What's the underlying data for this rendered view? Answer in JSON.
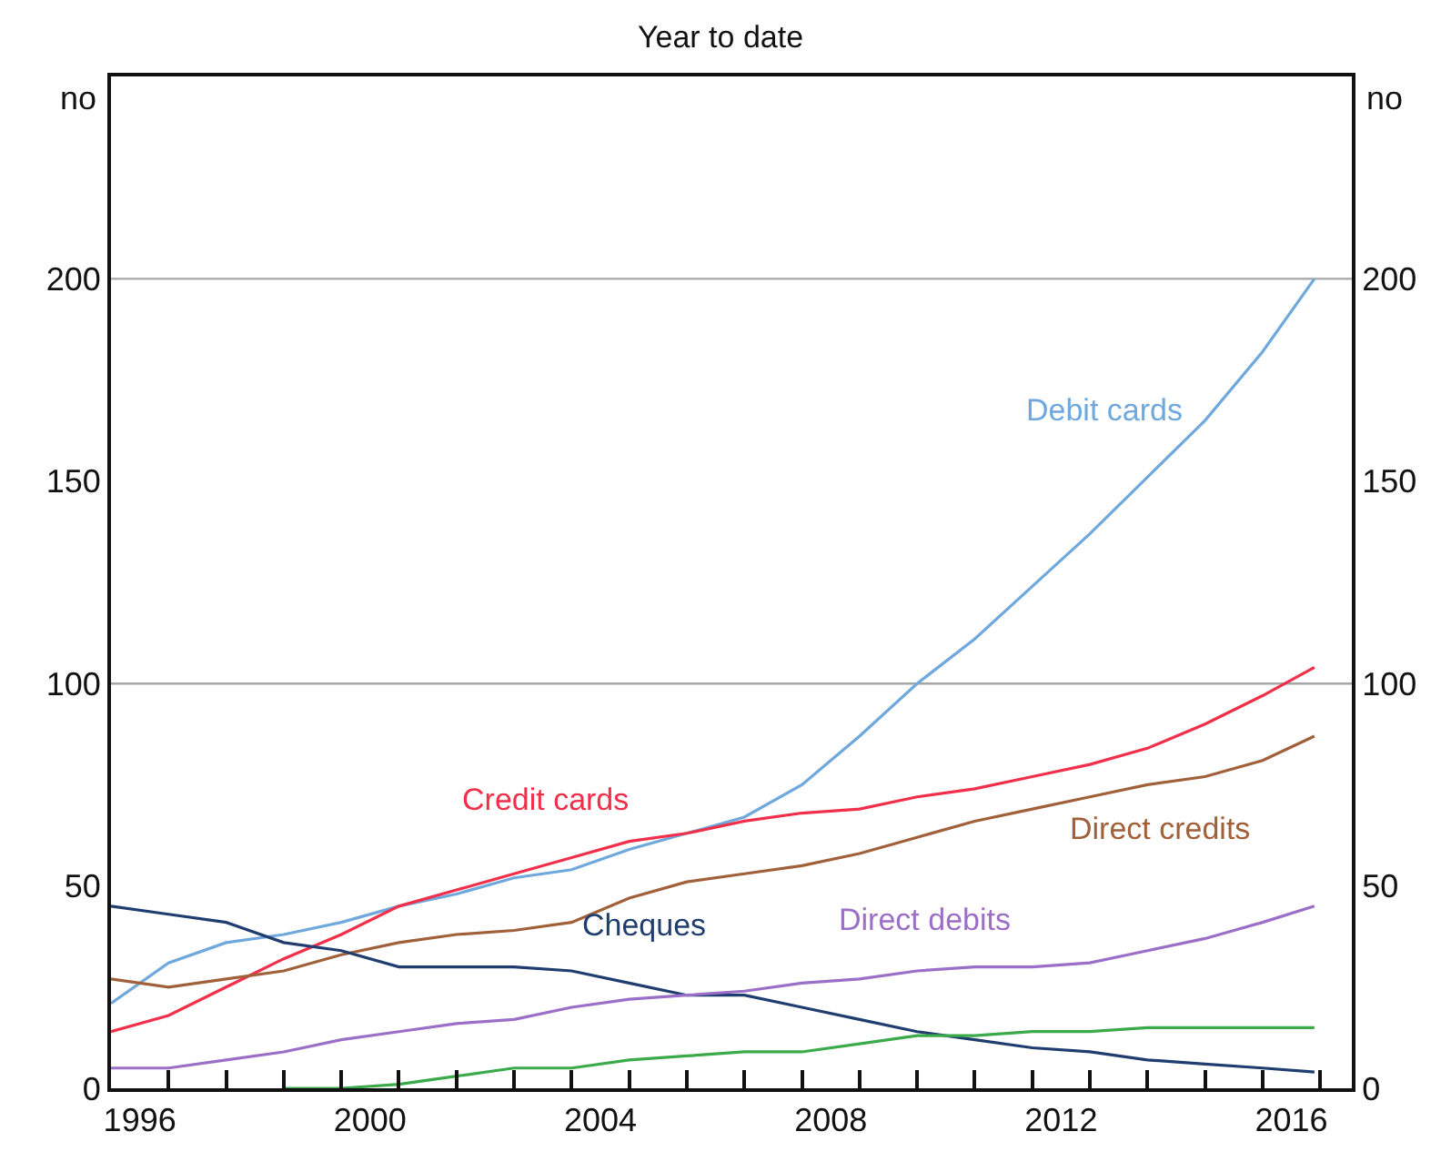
{
  "chart_data": {
    "type": "line",
    "title": "Year to date",
    "ylabel": "no",
    "y2label": "no",
    "x": [
      1996,
      1997,
      1998,
      1999,
      2000,
      2001,
      2002,
      2003,
      2004,
      2005,
      2006,
      2007,
      2008,
      2009,
      2010,
      2011,
      2012,
      2013,
      2014,
      2015,
      2016,
      2016.9
    ],
    "series": [
      {
        "name": "Debit cards",
        "color": "#6fa8dc",
        "values": [
          21,
          31,
          36,
          38,
          41,
          45,
          48,
          52,
          54,
          59,
          63,
          67,
          75,
          87,
          100,
          111,
          124,
          137,
          151,
          165,
          182,
          200
        ]
      },
      {
        "name": "Credit cards",
        "color": "#f0304a",
        "values": [
          14,
          18,
          25,
          32,
          38,
          45,
          49,
          53,
          57,
          61,
          63,
          66,
          68,
          69,
          72,
          74,
          77,
          80,
          84,
          90,
          97,
          104
        ]
      },
      {
        "name": "Direct credits",
        "color": "#a0603a",
        "values": [
          27,
          25,
          27,
          29,
          33,
          36,
          38,
          39,
          41,
          47,
          51,
          53,
          55,
          58,
          62,
          66,
          69,
          72,
          75,
          77,
          81,
          87
        ]
      },
      {
        "name": "Cheques",
        "color": "#1f3d6e",
        "values": [
          45,
          43,
          41,
          36,
          34,
          30,
          30,
          30,
          29,
          26,
          23,
          23,
          20,
          17,
          14,
          12,
          10,
          9,
          7,
          6,
          5,
          4
        ]
      },
      {
        "name": "Direct debits",
        "color": "#9b6fc7",
        "values": [
          5,
          5,
          7,
          9,
          12,
          14,
          16,
          17,
          20,
          22,
          23,
          24,
          26,
          27,
          29,
          30,
          30,
          31,
          34,
          37,
          41,
          45
        ]
      },
      {
        "color": "#3aaa4a",
        "values": [
          null,
          null,
          null,
          0,
          0,
          1,
          3,
          5,
          5,
          7,
          8,
          9,
          9,
          11,
          13,
          13,
          14,
          14,
          15,
          15,
          15,
          15
        ]
      }
    ],
    "xlim": [
      1996,
      2017.55
    ],
    "xticks": [
      {
        "value": 1996.5,
        "label": "1996"
      },
      {
        "value": 2000.5,
        "label": "2000"
      },
      {
        "value": 2004.5,
        "label": "2004"
      },
      {
        "value": 2008.5,
        "label": "2008"
      },
      {
        "value": 2012.5,
        "label": "2012"
      },
      {
        "value": 2016.5,
        "label": "2016"
      },
      {
        "value": 1997,
        "label": null
      },
      {
        "value": 1998,
        "label": null
      },
      {
        "value": 1999,
        "label": null
      },
      {
        "value": 2000,
        "label": null
      },
      {
        "value": 2001,
        "label": null
      },
      {
        "value": 2002,
        "label": null
      },
      {
        "value": 2003,
        "label": null
      },
      {
        "value": 2004,
        "label": null
      },
      {
        "value": 2005,
        "label": null
      },
      {
        "value": 2006,
        "label": null
      },
      {
        "value": 2007,
        "label": null
      },
      {
        "value": 2008,
        "label": null
      },
      {
        "value": 2009,
        "label": null
      },
      {
        "value": 2010,
        "label": null
      },
      {
        "value": 2011,
        "label": null
      },
      {
        "value": 2012,
        "label": null
      },
      {
        "value": 2013,
        "label": null
      },
      {
        "value": 2014,
        "label": null
      },
      {
        "value": 2015,
        "label": null
      },
      {
        "value": 2016,
        "label": null
      },
      {
        "value": 2017,
        "label": null
      }
    ],
    "ylim": [
      0,
      250
    ],
    "yticks": [
      0,
      50,
      100,
      150,
      200
    ],
    "y2lim": [
      0,
      250
    ],
    "y2ticks": [
      0,
      50,
      100,
      150,
      200
    ],
    "ref_lines": [
      {
        "axis": "y",
        "value": 100,
        "color": "#a6a6a6"
      },
      {
        "axis": "y",
        "value": 200,
        "color": "#a6a6a6"
      }
    ],
    "grid": false,
    "legend": false
  }
}
